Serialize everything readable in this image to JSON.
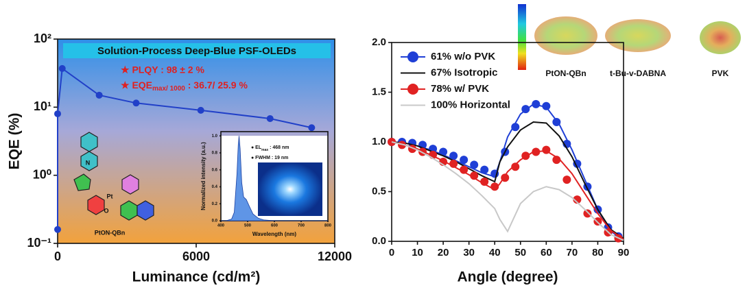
{
  "chart_data": [
    {
      "type": "line",
      "log_y": true,
      "title": "Solution-Process Deep-Blue PSF-OLEDs",
      "annotations": [
        "★ PLQY : 98 ± 2 %",
        {
          "text": "★ EQE",
          "subscript": "max/ 1000",
          "rest": " : 36.7/ 25.9 %"
        }
      ],
      "molecule_label": "PtON-QBn",
      "atom_labels": [
        "Pt",
        "O",
        "N"
      ],
      "xlabel": "Luminance (cd/m²)",
      "ylabel": "EQE (%)",
      "x": [
        0,
        0,
        200,
        1800,
        3400,
        6200,
        9200,
        11000
      ],
      "series": [
        {
          "color": "#2140c8",
          "values": [
            0.16,
            8,
            37,
            15,
            11.5,
            9,
            6.8,
            5
          ]
        }
      ],
      "xlim": [
        0,
        12000
      ],
      "ylim": [
        0.1,
        100
      ],
      "xticks": [
        0,
        6000,
        12000
      ],
      "yticks": [
        {
          "value": 0.1,
          "label": "10⁻¹"
        },
        {
          "value": 1,
          "label": "10⁰"
        },
        {
          "value": 10,
          "label": "10¹"
        },
        {
          "value": 100,
          "label": "10²"
        }
      ]
    },
    {
      "type": "area",
      "annotations": [
        {
          "text": "● EL",
          "subscript": "max",
          "rest": " : 468 nm"
        },
        "● FWHM : 19 nm"
      ],
      "xlabel": "Wavelength (nm)",
      "ylabel": "Normalized intensity (a.u.)",
      "color": "#5f95e6",
      "x": [
        400,
        420,
        440,
        450,
        460,
        465,
        468,
        472,
        478,
        485,
        495,
        505,
        520,
        540,
        560,
        600,
        800
      ],
      "values": [
        0,
        0,
        0.02,
        0.1,
        0.55,
        0.9,
        1.0,
        0.85,
        0.45,
        0.28,
        0.25,
        0.18,
        0.08,
        0.03,
        0.01,
        0,
        0
      ],
      "xlim": [
        400,
        800
      ],
      "ylim": [
        0,
        1.05
      ],
      "xticks": [
        400,
        500,
        600,
        700,
        800
      ],
      "yticks": [
        {
          "value": 0,
          "label": "0.0"
        },
        0.2,
        0.4,
        0.6,
        0.8,
        {
          "value": 1,
          "label": "1.0"
        }
      ]
    },
    {
      "type": "line",
      "legend": "upper left",
      "xlabel": "Angle (degree)",
      "x": [
        0,
        5,
        10,
        15,
        20,
        25,
        30,
        35,
        40,
        42,
        45,
        50,
        55,
        60,
        65,
        70,
        75,
        80,
        85,
        90
      ],
      "series": [
        {
          "name": "61% w/o PVK",
          "color": "#1f3fd6",
          "values": [
            1.0,
            0.99,
            0.96,
            0.92,
            0.87,
            0.81,
            0.75,
            0.69,
            0.65,
            0.8,
            1.05,
            1.28,
            1.38,
            1.35,
            1.18,
            0.92,
            0.62,
            0.32,
            0.1,
            0.02
          ],
          "points": {
            "x": [
              0,
              4,
              8,
              12,
              16,
              20,
              24,
              28,
              32,
              36,
              40,
              44,
              48,
              52,
              56,
              60,
              64,
              68,
              72,
              76,
              80,
              84,
              88
            ],
            "y": [
              1.0,
              1.0,
              0.99,
              0.97,
              0.93,
              0.9,
              0.86,
              0.82,
              0.77,
              0.72,
              0.68,
              0.9,
              1.15,
              1.33,
              1.38,
              1.36,
              1.2,
              0.98,
              0.78,
              0.55,
              0.32,
              0.14,
              0.05
            ]
          }
        },
        {
          "name": "67% Isotropic",
          "color": "#111111",
          "values": [
            1.0,
            0.99,
            0.96,
            0.91,
            0.86,
            0.8,
            0.73,
            0.66,
            0.6,
            0.8,
            0.95,
            1.12,
            1.2,
            1.19,
            1.06,
            0.85,
            0.58,
            0.32,
            0.12,
            0.03
          ]
        },
        {
          "name": "78% w/ PVK",
          "color": "#e02222",
          "values": [
            1.0,
            0.97,
            0.93,
            0.87,
            0.81,
            0.74,
            0.67,
            0.59,
            0.52,
            0.58,
            0.7,
            0.82,
            0.9,
            0.91,
            0.83,
            0.68,
            0.48,
            0.28,
            0.11,
            0.02
          ],
          "points": {
            "x": [
              0,
              4,
              8,
              12,
              16,
              20,
              24,
              28,
              32,
              36,
              40,
              44,
              48,
              52,
              56,
              60,
              64,
              68,
              72,
              76,
              80,
              84,
              88
            ],
            "y": [
              1.0,
              0.97,
              0.93,
              0.9,
              0.87,
              0.8,
              0.78,
              0.72,
              0.66,
              0.6,
              0.55,
              0.64,
              0.75,
              0.86,
              0.9,
              0.92,
              0.82,
              0.62,
              0.42,
              0.28,
              0.2,
              0.09,
              0.03
            ]
          }
        },
        {
          "name": "100% Horizontal",
          "color": "#c8c8c8",
          "values": [
            1.0,
            0.97,
            0.92,
            0.85,
            0.77,
            0.68,
            0.58,
            0.46,
            0.33,
            0.22,
            0.1,
            0.38,
            0.5,
            0.55,
            0.52,
            0.44,
            0.32,
            0.19,
            0.07,
            0.01
          ]
        }
      ],
      "xlim": [
        0,
        90
      ],
      "ylim": [
        0,
        2.0
      ],
      "xticks": [
        0,
        10,
        20,
        30,
        40,
        50,
        60,
        70,
        80,
        90
      ],
      "yticks": [
        {
          "value": 0,
          "label": "0.0"
        },
        0.5,
        {
          "value": 1,
          "label": "1.0"
        },
        1.5,
        {
          "value": 2,
          "label": "2.0"
        }
      ]
    }
  ],
  "surface_labels": [
    "PtON-QBn",
    "t-Bu-v-DABNA",
    "PVK"
  ]
}
